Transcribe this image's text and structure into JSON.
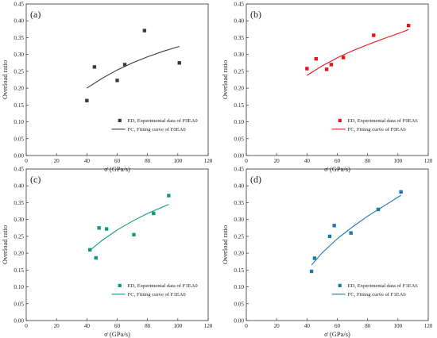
{
  "chart_data": [
    {
      "type": "scatter",
      "panel_label": "(a)",
      "xlabel": "σ̇  (GPa/s)",
      "ylabel": "Overload ratio",
      "xlim": [
        0,
        120
      ],
      "ylim": [
        0.0,
        0.45
      ],
      "xticks": [
        "0",
        "20",
        "40",
        "60",
        "80",
        "100",
        "120"
      ],
      "yticks": [
        "0.00",
        "0.05",
        "0.10",
        "0.15",
        "0.20",
        "0.25",
        "0.30",
        "0.35",
        "0.40",
        "0.45"
      ],
      "color": "#3a3a3a",
      "legend_position": "bottom-right",
      "series": [
        {
          "name": "ED, Experimental data of F0EA0",
          "kind": "scatter",
          "x": [
            40,
            45,
            60,
            65,
            78,
            101
          ],
          "y": [
            0.163,
            0.263,
            0.223,
            0.27,
            0.371,
            0.275
          ]
        },
        {
          "name": "FC, Fitting curve of F0EA0",
          "kind": "line",
          "x": [
            40,
            50,
            60,
            70,
            80,
            90,
            101
          ],
          "y": [
            0.2,
            0.229,
            0.254,
            0.275,
            0.293,
            0.309,
            0.324
          ]
        }
      ]
    },
    {
      "type": "scatter",
      "panel_label": "(b)",
      "xlabel": "σ̇  (GPa/s)",
      "ylabel": "Overload ratio",
      "xlim": [
        0,
        120
      ],
      "ylim": [
        0.0,
        0.45
      ],
      "xticks": [
        "0",
        "20",
        "40",
        "60",
        "80",
        "100",
        "120"
      ],
      "yticks": [
        "0.00",
        "0.05",
        "0.10",
        "0.15",
        "0.20",
        "0.25",
        "0.30",
        "0.35",
        "0.40",
        "0.45"
      ],
      "color": "#e8141c",
      "legend_position": "bottom-right",
      "series": [
        {
          "name": "ED, Experimental data of F0EA6",
          "kind": "scatter",
          "x": [
            40,
            46,
            53,
            56,
            64,
            84,
            107
          ],
          "y": [
            0.258,
            0.287,
            0.256,
            0.27,
            0.291,
            0.357,
            0.386
          ]
        },
        {
          "name": "FC, Fitting curve of F0EA6",
          "kind": "line",
          "x": [
            40,
            50,
            60,
            70,
            80,
            90,
            100,
            107
          ],
          "y": [
            0.238,
            0.266,
            0.29,
            0.311,
            0.329,
            0.346,
            0.362,
            0.374
          ]
        }
      ]
    },
    {
      "type": "scatter",
      "panel_label": "(c)",
      "xlabel": "σ̇  (GPa/s)",
      "ylabel": "Overload ratio",
      "xlim": [
        0,
        120
      ],
      "ylim": [
        0.0,
        0.45
      ],
      "xticks": [
        "0",
        "20",
        "40",
        "60",
        "80",
        "100",
        "120"
      ],
      "yticks": [
        "0.00",
        "0.05",
        "0.10",
        "0.15",
        "0.20",
        "0.25",
        "0.30",
        "0.35",
        "0.40",
        "0.45"
      ],
      "color": "#0e9a7c",
      "legend_position": "bottom-right",
      "series": [
        {
          "name": "ED, Experimental data of F1EA0",
          "kind": "scatter",
          "x": [
            42,
            46,
            48,
            53,
            71,
            84,
            94
          ],
          "y": [
            0.21,
            0.186,
            0.275,
            0.272,
            0.255,
            0.318,
            0.371
          ]
        },
        {
          "name": "FC, Fitting curve of F1EA0",
          "kind": "line",
          "x": [
            42,
            50,
            60,
            70,
            80,
            94
          ],
          "y": [
            0.208,
            0.238,
            0.269,
            0.295,
            0.318,
            0.345
          ]
        }
      ]
    },
    {
      "type": "scatter",
      "panel_label": "(d)",
      "xlabel": "σ̇  (GPa/s)",
      "ylabel": "Overload ratio",
      "xlim": [
        0,
        120
      ],
      "ylim": [
        0.0,
        0.45
      ],
      "xticks": [
        "0",
        "20",
        "40",
        "60",
        "80",
        "100",
        "120"
      ],
      "yticks": [
        "0.00",
        "0.05",
        "0.10",
        "0.15",
        "0.20",
        "0.25",
        "0.30",
        "0.35",
        "0.40",
        "0.45"
      ],
      "color": "#1f78b4",
      "legend_position": "bottom-right",
      "series": [
        {
          "name": "ED, Experimental data of F1EA6",
          "kind": "scatter",
          "x": [
            43,
            45,
            55,
            58,
            69,
            87,
            102
          ],
          "y": [
            0.146,
            0.185,
            0.25,
            0.282,
            0.26,
            0.33,
            0.382
          ]
        },
        {
          "name": "FC, Fitting curve of F1EA6",
          "kind": "line",
          "x": [
            43,
            50,
            60,
            70,
            80,
            90,
            102
          ],
          "y": [
            0.165,
            0.201,
            0.243,
            0.278,
            0.31,
            0.338,
            0.372
          ]
        }
      ]
    }
  ]
}
